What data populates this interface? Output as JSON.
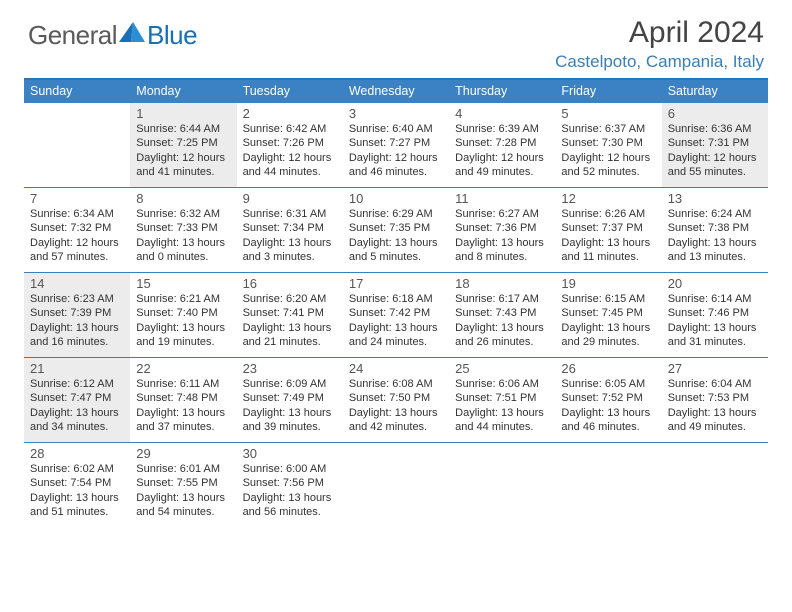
{
  "brand": {
    "part1": "General",
    "part2": "Blue"
  },
  "title": "April 2024",
  "location": "Castelpoto, Campania, Italy",
  "colors": {
    "header_bg": "#3a82c4",
    "accent": "#3a7fb5",
    "shaded": "#ececec",
    "text": "#333333"
  },
  "dow": [
    "Sunday",
    "Monday",
    "Tuesday",
    "Wednesday",
    "Thursday",
    "Friday",
    "Saturday"
  ],
  "weeks": [
    [
      {
        "n": "",
        "sr": "",
        "ss": "",
        "dl": "",
        "shaded": false
      },
      {
        "n": "1",
        "sr": "Sunrise: 6:44 AM",
        "ss": "Sunset: 7:25 PM",
        "dl": "Daylight: 12 hours and 41 minutes.",
        "shaded": true
      },
      {
        "n": "2",
        "sr": "Sunrise: 6:42 AM",
        "ss": "Sunset: 7:26 PM",
        "dl": "Daylight: 12 hours and 44 minutes.",
        "shaded": false
      },
      {
        "n": "3",
        "sr": "Sunrise: 6:40 AM",
        "ss": "Sunset: 7:27 PM",
        "dl": "Daylight: 12 hours and 46 minutes.",
        "shaded": false
      },
      {
        "n": "4",
        "sr": "Sunrise: 6:39 AM",
        "ss": "Sunset: 7:28 PM",
        "dl": "Daylight: 12 hours and 49 minutes.",
        "shaded": false
      },
      {
        "n": "5",
        "sr": "Sunrise: 6:37 AM",
        "ss": "Sunset: 7:30 PM",
        "dl": "Daylight: 12 hours and 52 minutes.",
        "shaded": false
      },
      {
        "n": "6",
        "sr": "Sunrise: 6:36 AM",
        "ss": "Sunset: 7:31 PM",
        "dl": "Daylight: 12 hours and 55 minutes.",
        "shaded": true
      }
    ],
    [
      {
        "n": "7",
        "sr": "Sunrise: 6:34 AM",
        "ss": "Sunset: 7:32 PM",
        "dl": "Daylight: 12 hours and 57 minutes.",
        "shaded": false
      },
      {
        "n": "8",
        "sr": "Sunrise: 6:32 AM",
        "ss": "Sunset: 7:33 PM",
        "dl": "Daylight: 13 hours and 0 minutes.",
        "shaded": false
      },
      {
        "n": "9",
        "sr": "Sunrise: 6:31 AM",
        "ss": "Sunset: 7:34 PM",
        "dl": "Daylight: 13 hours and 3 minutes.",
        "shaded": false
      },
      {
        "n": "10",
        "sr": "Sunrise: 6:29 AM",
        "ss": "Sunset: 7:35 PM",
        "dl": "Daylight: 13 hours and 5 minutes.",
        "shaded": false
      },
      {
        "n": "11",
        "sr": "Sunrise: 6:27 AM",
        "ss": "Sunset: 7:36 PM",
        "dl": "Daylight: 13 hours and 8 minutes.",
        "shaded": false
      },
      {
        "n": "12",
        "sr": "Sunrise: 6:26 AM",
        "ss": "Sunset: 7:37 PM",
        "dl": "Daylight: 13 hours and 11 minutes.",
        "shaded": false
      },
      {
        "n": "13",
        "sr": "Sunrise: 6:24 AM",
        "ss": "Sunset: 7:38 PM",
        "dl": "Daylight: 13 hours and 13 minutes.",
        "shaded": false
      }
    ],
    [
      {
        "n": "14",
        "sr": "Sunrise: 6:23 AM",
        "ss": "Sunset: 7:39 PM",
        "dl": "Daylight: 13 hours and 16 minutes.",
        "shaded": true
      },
      {
        "n": "15",
        "sr": "Sunrise: 6:21 AM",
        "ss": "Sunset: 7:40 PM",
        "dl": "Daylight: 13 hours and 19 minutes.",
        "shaded": false
      },
      {
        "n": "16",
        "sr": "Sunrise: 6:20 AM",
        "ss": "Sunset: 7:41 PM",
        "dl": "Daylight: 13 hours and 21 minutes.",
        "shaded": false
      },
      {
        "n": "17",
        "sr": "Sunrise: 6:18 AM",
        "ss": "Sunset: 7:42 PM",
        "dl": "Daylight: 13 hours and 24 minutes.",
        "shaded": false
      },
      {
        "n": "18",
        "sr": "Sunrise: 6:17 AM",
        "ss": "Sunset: 7:43 PM",
        "dl": "Daylight: 13 hours and 26 minutes.",
        "shaded": false
      },
      {
        "n": "19",
        "sr": "Sunrise: 6:15 AM",
        "ss": "Sunset: 7:45 PM",
        "dl": "Daylight: 13 hours and 29 minutes.",
        "shaded": false
      },
      {
        "n": "20",
        "sr": "Sunrise: 6:14 AM",
        "ss": "Sunset: 7:46 PM",
        "dl": "Daylight: 13 hours and 31 minutes.",
        "shaded": false
      }
    ],
    [
      {
        "n": "21",
        "sr": "Sunrise: 6:12 AM",
        "ss": "Sunset: 7:47 PM",
        "dl": "Daylight: 13 hours and 34 minutes.",
        "shaded": true
      },
      {
        "n": "22",
        "sr": "Sunrise: 6:11 AM",
        "ss": "Sunset: 7:48 PM",
        "dl": "Daylight: 13 hours and 37 minutes.",
        "shaded": false
      },
      {
        "n": "23",
        "sr": "Sunrise: 6:09 AM",
        "ss": "Sunset: 7:49 PM",
        "dl": "Daylight: 13 hours and 39 minutes.",
        "shaded": false
      },
      {
        "n": "24",
        "sr": "Sunrise: 6:08 AM",
        "ss": "Sunset: 7:50 PM",
        "dl": "Daylight: 13 hours and 42 minutes.",
        "shaded": false
      },
      {
        "n": "25",
        "sr": "Sunrise: 6:06 AM",
        "ss": "Sunset: 7:51 PM",
        "dl": "Daylight: 13 hours and 44 minutes.",
        "shaded": false
      },
      {
        "n": "26",
        "sr": "Sunrise: 6:05 AM",
        "ss": "Sunset: 7:52 PM",
        "dl": "Daylight: 13 hours and 46 minutes.",
        "shaded": false
      },
      {
        "n": "27",
        "sr": "Sunrise: 6:04 AM",
        "ss": "Sunset: 7:53 PM",
        "dl": "Daylight: 13 hours and 49 minutes.",
        "shaded": false
      }
    ],
    [
      {
        "n": "28",
        "sr": "Sunrise: 6:02 AM",
        "ss": "Sunset: 7:54 PM",
        "dl": "Daylight: 13 hours and 51 minutes.",
        "shaded": false
      },
      {
        "n": "29",
        "sr": "Sunrise: 6:01 AM",
        "ss": "Sunset: 7:55 PM",
        "dl": "Daylight: 13 hours and 54 minutes.",
        "shaded": false
      },
      {
        "n": "30",
        "sr": "Sunrise: 6:00 AM",
        "ss": "Sunset: 7:56 PM",
        "dl": "Daylight: 13 hours and 56 minutes.",
        "shaded": false
      },
      {
        "n": "",
        "sr": "",
        "ss": "",
        "dl": "",
        "shaded": false
      },
      {
        "n": "",
        "sr": "",
        "ss": "",
        "dl": "",
        "shaded": false
      },
      {
        "n": "",
        "sr": "",
        "ss": "",
        "dl": "",
        "shaded": false
      },
      {
        "n": "",
        "sr": "",
        "ss": "",
        "dl": "",
        "shaded": false
      }
    ]
  ]
}
